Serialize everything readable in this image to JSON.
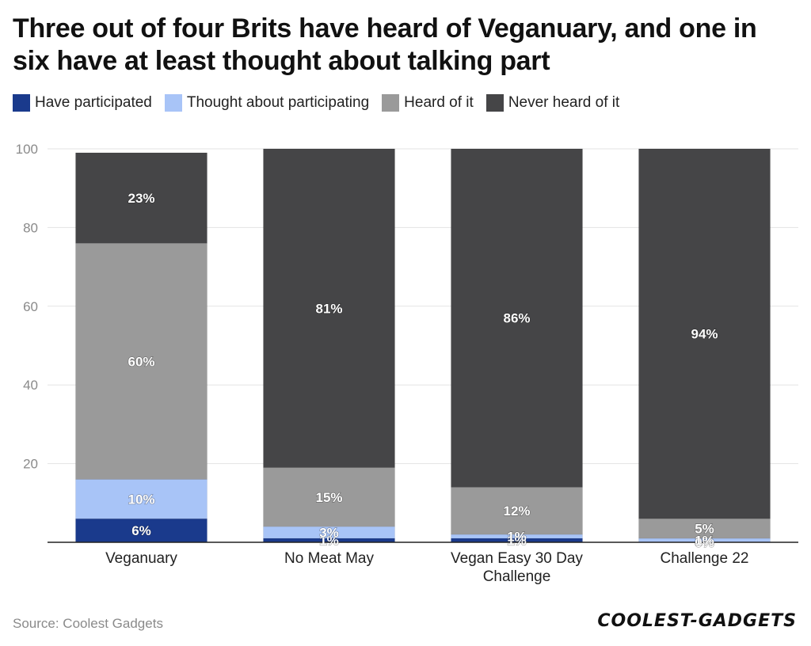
{
  "title": "Three out of four Brits have heard of Veganuary, and one in six have at least thought about talking part",
  "source": "Source: Coolest Gadgets",
  "logo": "COOLEST-GADGETS",
  "chart_data": {
    "type": "bar",
    "stacked": true,
    "categories": [
      [
        "Veganuary"
      ],
      [
        "No Meat May"
      ],
      [
        "Vegan Easy 30 Day",
        "Challenge"
      ],
      [
        "Challenge 22"
      ]
    ],
    "series": [
      {
        "name": "Have participated",
        "color": "#1a3a8c",
        "values": [
          6,
          1,
          1,
          0
        ]
      },
      {
        "name": "Thought about participating",
        "color": "#a8c4f7",
        "values": [
          10,
          3,
          1,
          1
        ]
      },
      {
        "name": "Heard of it",
        "color": "#9a9a9a",
        "values": [
          60,
          15,
          12,
          5
        ]
      },
      {
        "name": "Never heard of it",
        "color": "#454547",
        "values": [
          23,
          81,
          86,
          94
        ]
      }
    ],
    "ylim": [
      0,
      100
    ],
    "yticks": [
      20,
      40,
      60,
      80,
      100
    ],
    "grid": true,
    "legend_position": "top-left",
    "xlabel": "",
    "ylabel": ""
  }
}
